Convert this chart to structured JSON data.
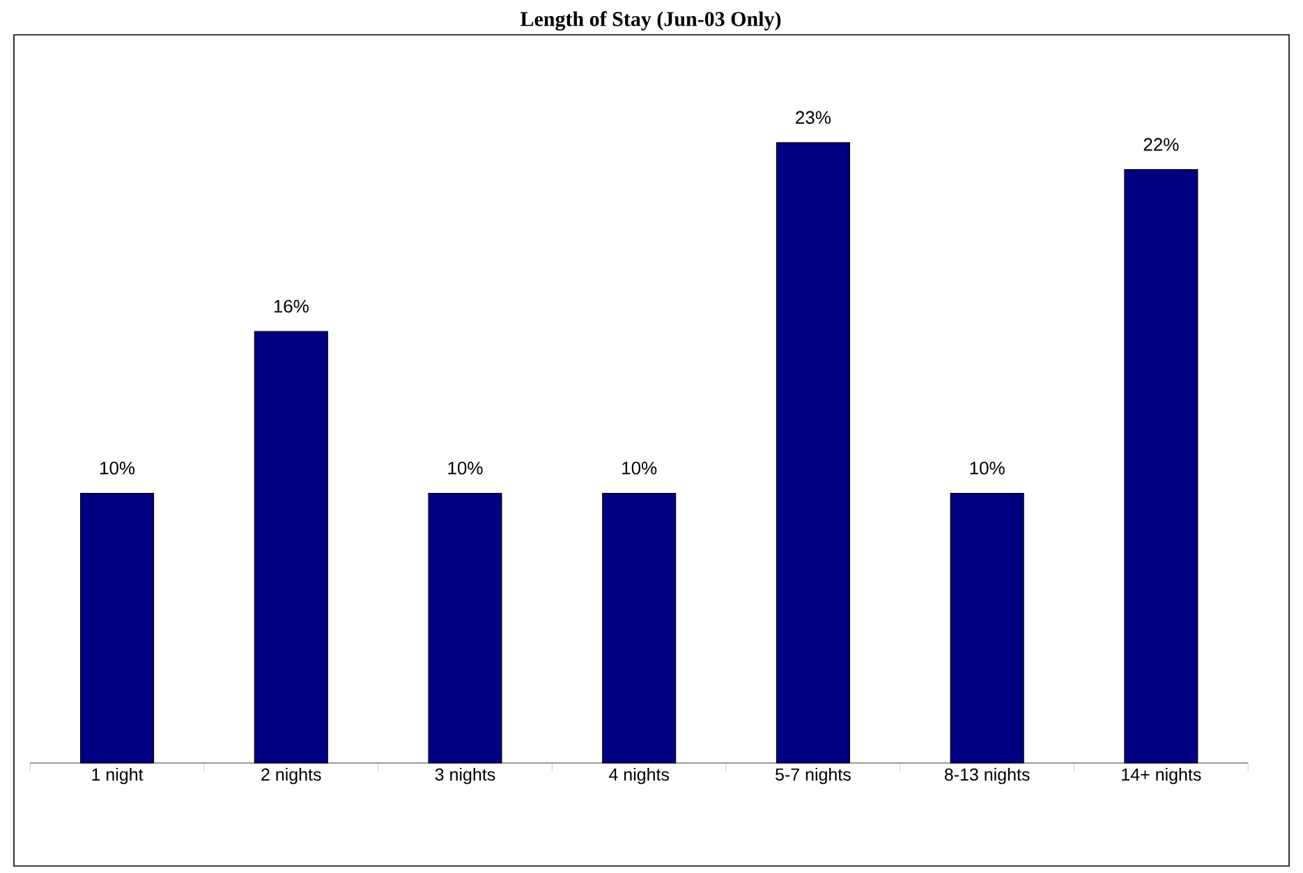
{
  "chart_data": {
    "type": "bar",
    "title": "Length of Stay (Jun-03 Only)",
    "categories": [
      "1 night",
      "2 nights",
      "3 nights",
      "4 nights",
      "5-7 nights",
      "8-13 nights",
      "14+ nights"
    ],
    "values": [
      10,
      16,
      10,
      10,
      23,
      10,
      22
    ],
    "value_labels": [
      "10%",
      "16%",
      "10%",
      "10%",
      "23%",
      "10%",
      "22%"
    ],
    "color": "#000080",
    "ylim": [
      0,
      27
    ]
  }
}
